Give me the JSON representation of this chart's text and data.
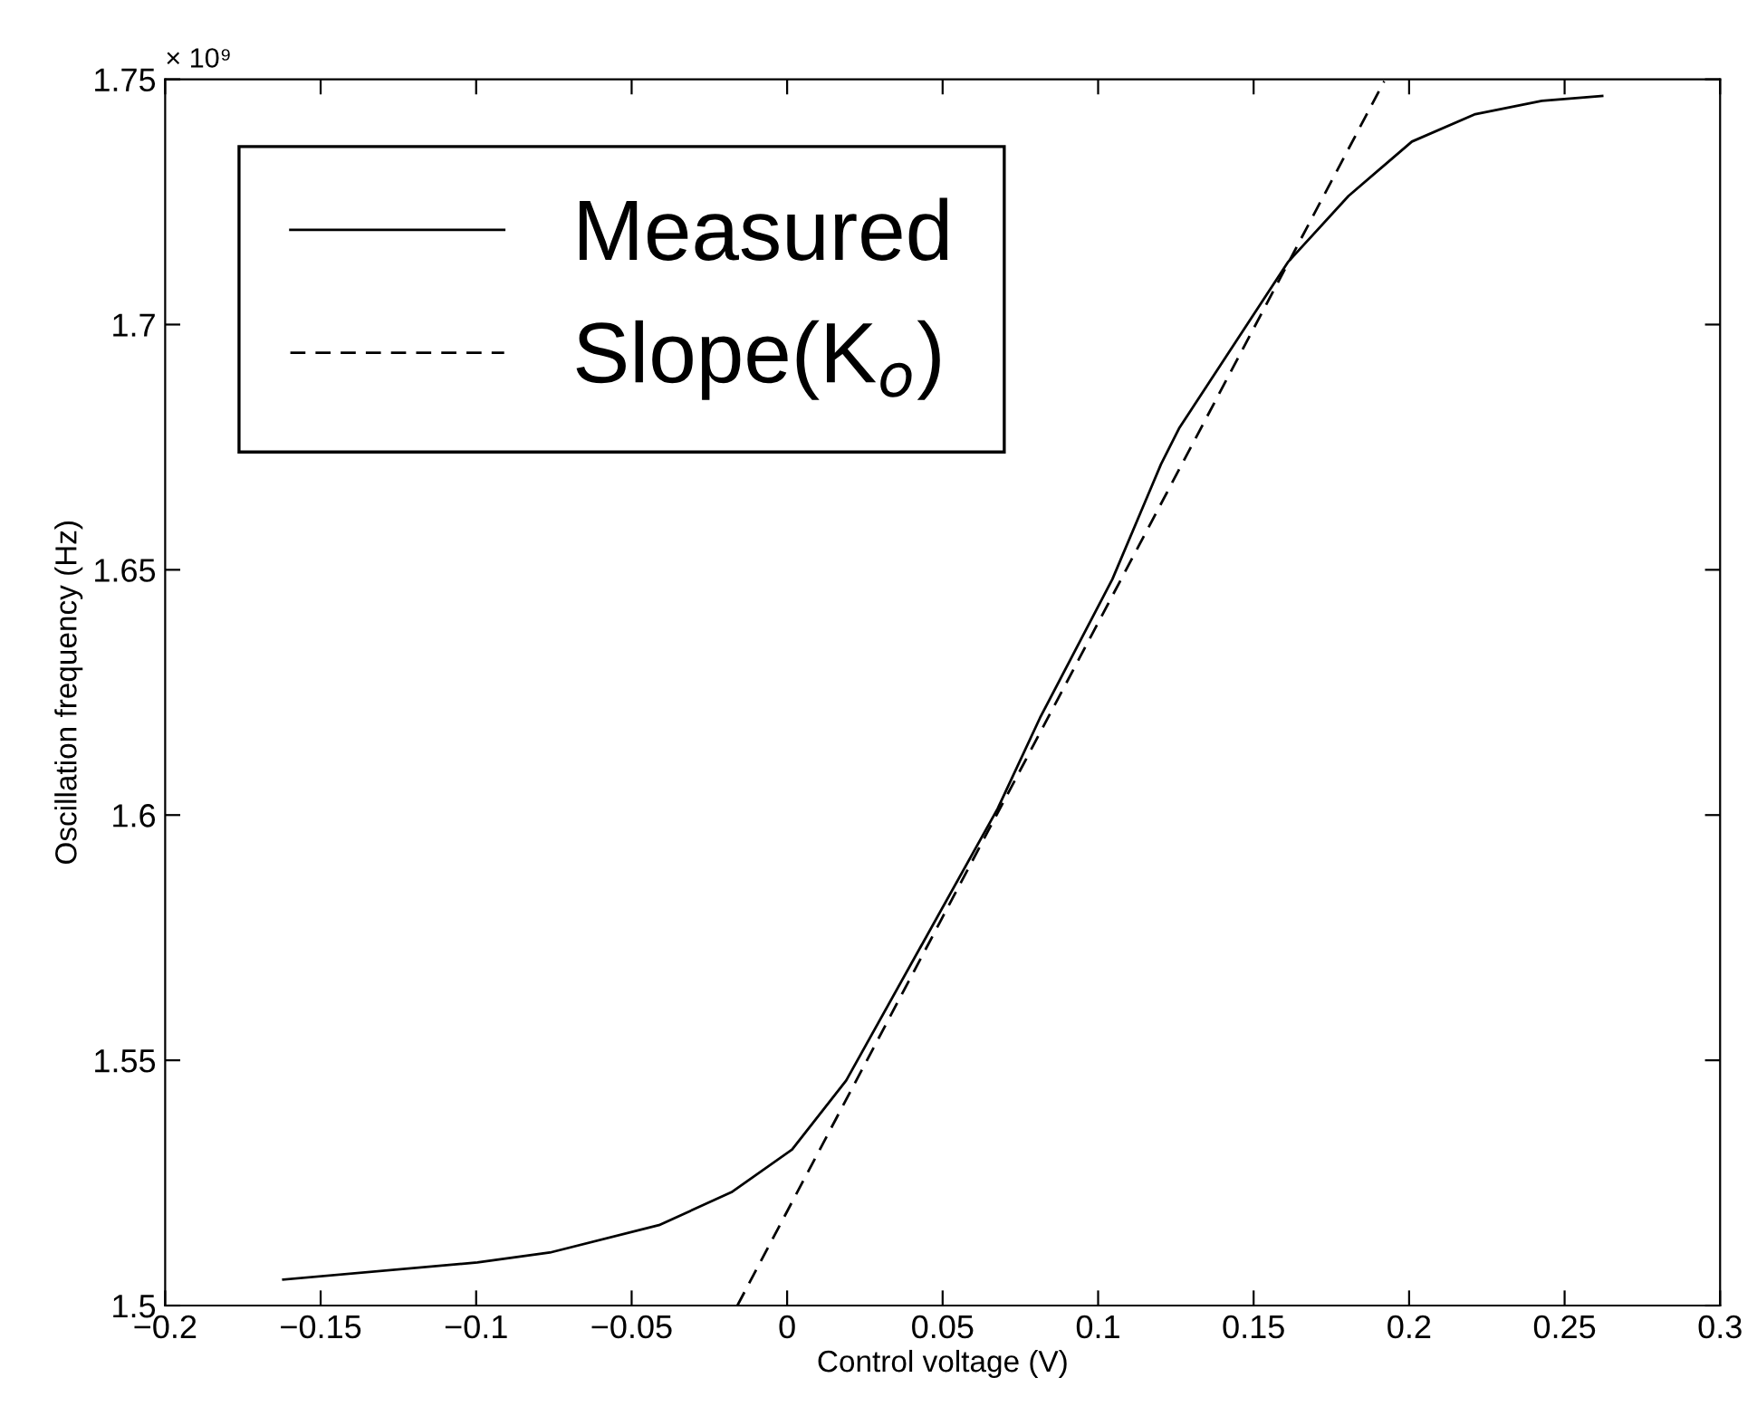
{
  "chart_data": {
    "type": "line",
    "xlabel": "Control voltage (V)",
    "ylabel": "Oscillation frequency (Hz)",
    "annotations": [
      "× 10⁹"
    ],
    "series": [
      {
        "name": "Measured",
        "color": "#000000",
        "line_style": "solid",
        "x": [
          -0.162,
          -0.0996,
          -0.0763,
          -0.0412,
          -0.0179,
          0.0016,
          0.019,
          0.0677,
          0.0813,
          0.1046,
          0.1202,
          0.126,
          0.161,
          0.1805,
          0.2009,
          0.2213,
          0.2427,
          0.2621
        ],
        "values": [
          1.5053,
          1.5088,
          1.5108,
          1.5164,
          1.5231,
          1.5318,
          1.5459,
          1.6013,
          1.6198,
          1.6481,
          1.6715,
          1.6788,
          1.7127,
          1.7262,
          1.7373,
          1.7429,
          1.7456,
          1.7466
        ]
      },
      {
        "name": "Slope(K$_{o}$)",
        "color": "#000000",
        "line_style": "dashed",
        "x": [
          -0.016,
          0.192
        ],
        "values": [
          1.5,
          1.7496
        ]
      }
    ],
    "xlim": [
      -0.2,
      0.3
    ],
    "ylim": [
      1.5,
      1.75
    ],
    "xticks": [
      {
        "value": -0.2,
        "label": "−0.2"
      },
      {
        "value": -0.15,
        "label": "−0.15"
      },
      {
        "value": -0.1,
        "label": "−0.1"
      },
      {
        "value": -0.05,
        "label": "−0.05"
      },
      0,
      0.05,
      0.1,
      0.15,
      0.2,
      0.25,
      0.3
    ],
    "yticks": [
      1.5,
      1.55,
      1.6,
      1.65,
      1.7,
      1.75
    ],
    "grid": false,
    "legend": "top left",
    "marker": "none"
  }
}
